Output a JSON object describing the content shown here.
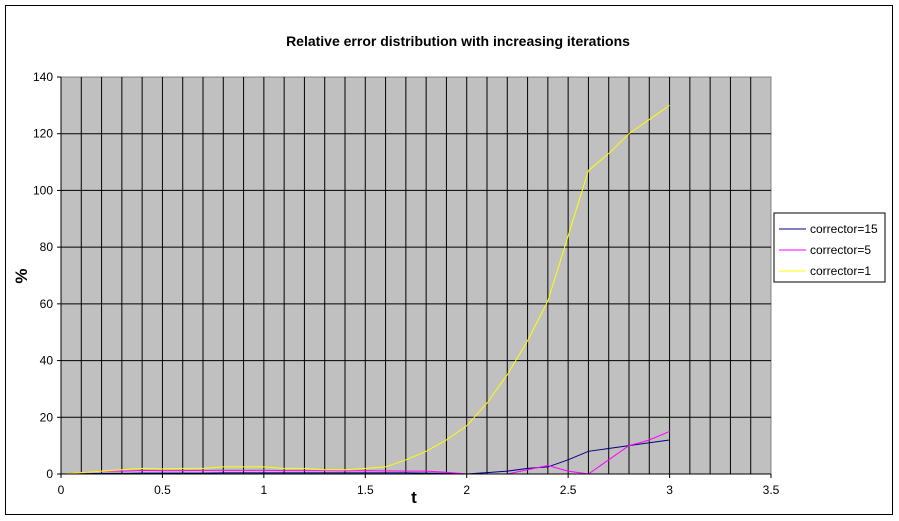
{
  "chart_data": {
    "type": "line",
    "title": "Relative error distribution with increasing iterations",
    "xlabel": "t",
    "ylabel": "%",
    "xlim": [
      0,
      3.5
    ],
    "ylim": [
      0,
      140
    ],
    "x_ticks": [
      "0",
      "0.5",
      "1",
      "1.5",
      "2",
      "2.5",
      "3",
      "3.5"
    ],
    "y_ticks": [
      "0",
      "20",
      "40",
      "60",
      "80",
      "100",
      "120",
      "140"
    ],
    "grid": true,
    "legend_position": "right",
    "x": [
      0,
      0.1,
      0.2,
      0.3,
      0.4,
      0.5,
      0.6,
      0.7,
      0.8,
      0.9,
      1.0,
      1.1,
      1.2,
      1.3,
      1.4,
      1.5,
      1.6,
      1.7,
      1.8,
      1.9,
      2.0,
      2.1,
      2.2,
      2.3,
      2.4,
      2.5,
      2.6,
      2.7,
      2.8,
      2.9,
      3.0
    ],
    "series": [
      {
        "name": "corrector=15",
        "color": "#000080",
        "values": [
          0,
          0.1,
          0.2,
          0.2,
          0.3,
          0.3,
          0.3,
          0.3,
          0.4,
          0.4,
          0.4,
          0.4,
          0.4,
          0.4,
          0.4,
          0.4,
          0.4,
          0.4,
          0.3,
          0.2,
          0,
          0.5,
          1,
          2,
          2.5,
          5,
          8,
          9,
          10,
          11,
          12
        ]
      },
      {
        "name": "corrector=5",
        "color": "#ff00ff",
        "values": [
          0,
          0.5,
          1,
          1,
          1.3,
          1.2,
          1.2,
          1.3,
          1.3,
          1.3,
          1.3,
          1.2,
          1.2,
          1.2,
          1.1,
          1.2,
          1.1,
          1,
          1,
          0.6,
          0,
          0,
          0,
          1.5,
          3,
          1,
          0,
          5,
          10,
          12,
          15
        ]
      },
      {
        "name": "corrector=1",
        "color": "#ffff00",
        "values": [
          0,
          0.5,
          1,
          1.5,
          2,
          1.8,
          2,
          2,
          2.5,
          2.5,
          2.5,
          2,
          2,
          1.5,
          1.5,
          2,
          2.5,
          5,
          8,
          12,
          17,
          25,
          35,
          47,
          61,
          84,
          107,
          113,
          120,
          125,
          130
        ]
      }
    ]
  }
}
